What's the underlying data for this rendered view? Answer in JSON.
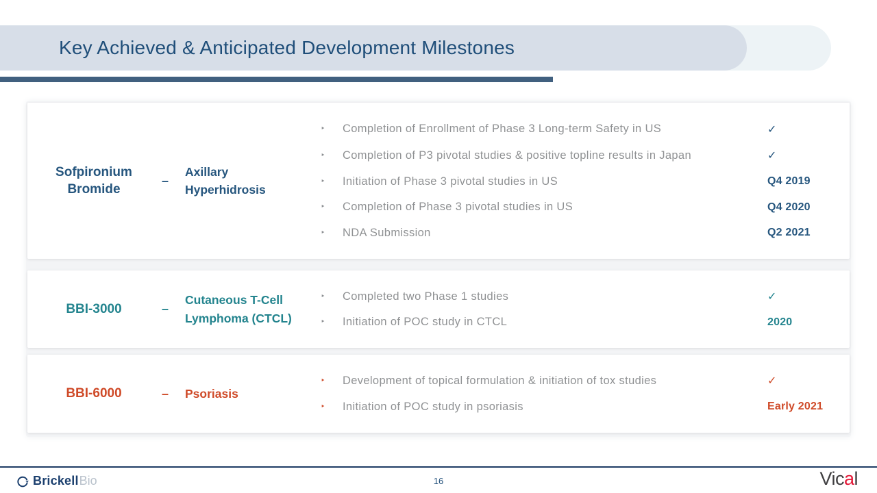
{
  "header": {
    "title": "Key Achieved & Anticipated Development Milestones"
  },
  "bullet_glyph": "‣",
  "colors": {
    "header_band": "#d7dee8",
    "header_band_light": "#edf3f6",
    "underline_bar": "#41607f",
    "title_text": "#1f4e79",
    "milestone_text": "#8f9193",
    "section_navy": "#26567e",
    "section_teal": "#23848e",
    "section_orange": "#cf4a28"
  },
  "sections": [
    {
      "id": "sofpironium-bromide",
      "product": "Sofpironium Bromide",
      "dash": "–",
      "indication": "Axillary Hyperhidrosis",
      "color": "#26567e",
      "bullet_color": "#8a8d90",
      "milestones": [
        {
          "text": "Completion of Enrollment of Phase 3 Long-term Safety in US",
          "status": "✓"
        },
        {
          "text": "Completion of P3 pivotal studies & positive topline results in Japan",
          "status": "✓"
        },
        {
          "text": "Initiation of Phase 3 pivotal studies in US",
          "status": "Q4 2019"
        },
        {
          "text": "Completion of Phase 3 pivotal studies in US",
          "status": "Q4 2020"
        },
        {
          "text": "NDA Submission",
          "status": "Q2 2021"
        }
      ]
    },
    {
      "id": "bbi-3000",
      "product": "BBI-3000",
      "dash": "–",
      "indication": "Cutaneous T-Cell Lymphoma (CTCL)",
      "color": "#23848e",
      "bullet_color": "#8a8d90",
      "milestones": [
        {
          "text": "Completed two Phase 1 studies",
          "status": "✓"
        },
        {
          "text": "Initiation of POC study in CTCL",
          "status": "2020"
        }
      ]
    },
    {
      "id": "bbi-6000",
      "product": "BBI-6000",
      "dash": "–",
      "indication": "Psoriasis",
      "color": "#cf4a28",
      "bullet_color": "#cf4a28",
      "milestones": [
        {
          "text": "Development of topical formulation & initiation of tox studies",
          "status": "✓"
        },
        {
          "text": "Initiation of POC study in psoriasis",
          "status": "Early 2021"
        }
      ]
    }
  ],
  "footer": {
    "page": "16",
    "brickell": {
      "bold": "Brickell",
      "light": "Bio"
    },
    "vical": {
      "v": "Vi",
      "c": "c",
      "a": "a",
      "l": "l"
    }
  }
}
